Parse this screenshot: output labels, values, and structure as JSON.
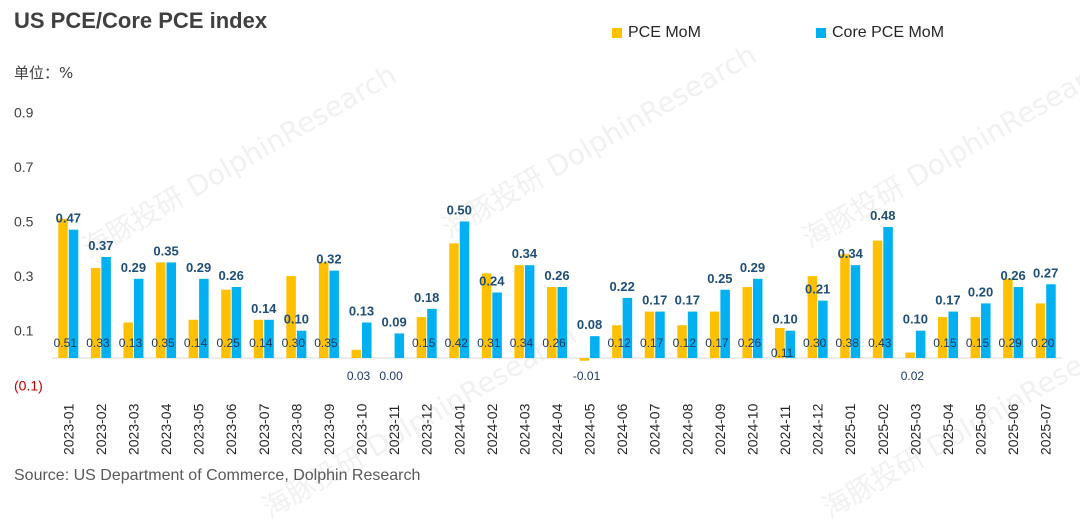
{
  "header": {
    "title": "US PCE/Core PCE index",
    "unit": "单位：%"
  },
  "footer": {
    "source": "Source: US Department of Commerce, Dolphin Research"
  },
  "watermark": {
    "text": "海豚投研 DolphinResearch"
  },
  "colors": {
    "pce": "#FFC000",
    "core": "#00B0F0",
    "pce_label": "#1F3864",
    "core_label": "#1F4E79",
    "negative_tick": "#C00000"
  },
  "chart_data": {
    "type": "bar",
    "title": "US PCE/Core PCE index",
    "ylabel": "单位：%",
    "xlabel": "",
    "ylim": [
      -0.1,
      1.0
    ],
    "yticks": [
      {
        "value": 0.9,
        "label": "0.9"
      },
      {
        "value": 0.7,
        "label": "0.7"
      },
      {
        "value": 0.5,
        "label": "0.5"
      },
      {
        "value": 0.3,
        "label": "0.3"
      },
      {
        "value": 0.1,
        "label": "0.1"
      },
      {
        "value": -0.1,
        "label": "(0.1)"
      }
    ],
    "legend_position": "top-right",
    "grid": false,
    "categories": [
      "2023-01",
      "2023-02",
      "2023-03",
      "2023-04",
      "2023-05",
      "2023-06",
      "2023-07",
      "2023-08",
      "2023-09",
      "2023-10",
      "2023-11",
      "2023-12",
      "2024-01",
      "2024-02",
      "2024-03",
      "2024-04",
      "2024-05",
      "2024-06",
      "2024-07",
      "2024-08",
      "2024-09",
      "2024-10",
      "2024-11",
      "2024-12",
      "2025-01",
      "2025-02",
      "2025-03",
      "2025-04",
      "2025-05",
      "2025-06",
      "2025-07"
    ],
    "series": [
      {
        "name": "PCE MoM",
        "values": [
          0.51,
          0.33,
          0.13,
          0.35,
          0.14,
          0.25,
          0.14,
          0.3,
          0.35,
          0.03,
          0.0,
          0.15,
          0.42,
          0.31,
          0.34,
          0.26,
          -0.01,
          0.12,
          0.17,
          0.12,
          0.17,
          0.26,
          0.11,
          0.3,
          0.38,
          0.43,
          0.02,
          0.15,
          0.15,
          0.29,
          0.2
        ],
        "labels": [
          "0.51",
          "0.33",
          "0.13",
          "0.35",
          "0.14",
          "0.25",
          "0.14",
          "0.30",
          "0.35",
          "0.03",
          "0.00",
          "0.15",
          "0.42",
          "0.31",
          "0.34",
          "0.26",
          "-0.01",
          "0.12",
          "0.17",
          "0.12",
          "0.17",
          "0.26",
          "0.11",
          "0.30",
          "0.38",
          "0.43",
          "0.02",
          "0.15",
          "0.15",
          "0.29",
          "0.20"
        ]
      },
      {
        "name": "Core PCE MoM",
        "values": [
          0.47,
          0.37,
          0.29,
          0.35,
          0.29,
          0.26,
          0.14,
          0.1,
          0.32,
          0.13,
          0.09,
          0.18,
          0.5,
          0.24,
          0.34,
          0.26,
          0.08,
          0.22,
          0.17,
          0.17,
          0.25,
          0.29,
          0.1,
          0.21,
          0.34,
          0.48,
          0.1,
          0.17,
          0.2,
          0.26,
          0.27
        ],
        "labels": [
          "0.47",
          "0.37",
          "0.29",
          "0.35",
          "0.29",
          "0.26",
          "0.14",
          "0.10",
          "0.32",
          "0.13",
          "0.09",
          "0.18",
          "0.50",
          "0.24",
          "0.34",
          "0.26",
          "0.08",
          "0.22",
          "0.17",
          "0.17",
          "0.25",
          "0.29",
          "0.10",
          "0.21",
          "0.34",
          "0.48",
          "0.10",
          "0.17",
          "0.20",
          "0.26",
          "0.27"
        ]
      }
    ]
  }
}
